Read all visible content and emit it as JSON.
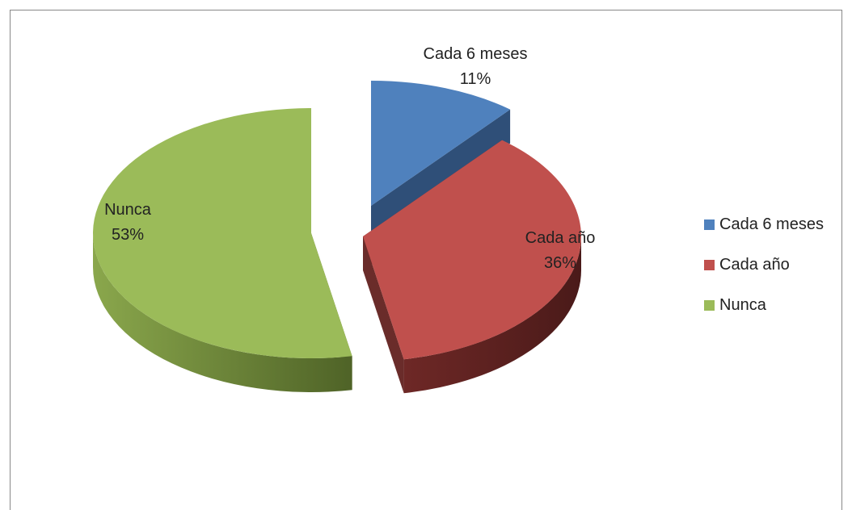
{
  "chart_data": {
    "type": "pie",
    "variant": "3d-exploded",
    "title": "",
    "slices": [
      {
        "name": "Cada 6 meses",
        "value": 11,
        "label": "11%",
        "color": "#4F81BD"
      },
      {
        "name": "Cada año",
        "value": 36,
        "label": "36%",
        "color": "#C0504D"
      },
      {
        "name": "Nunca",
        "value": 53,
        "label": "53%",
        "color": "#9BBB59"
      }
    ],
    "legend_position": "right"
  }
}
